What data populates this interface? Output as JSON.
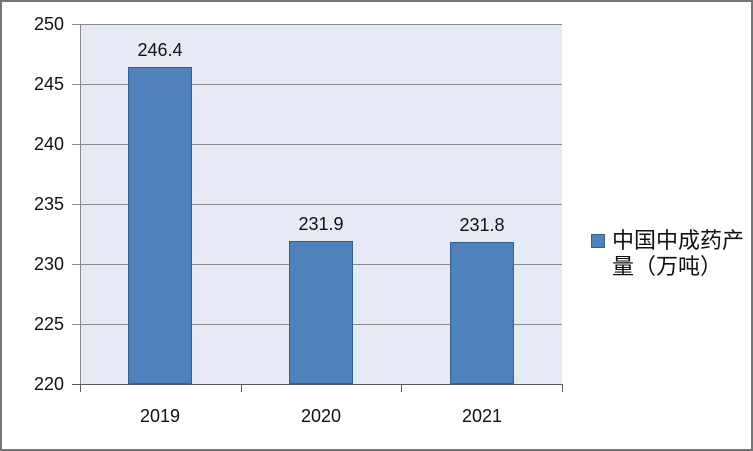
{
  "chart_data": {
    "type": "bar",
    "title": "",
    "categories": [
      "2019",
      "2020",
      "2021"
    ],
    "series": [
      {
        "name": "中国中成药产量（万吨）",
        "values": [
          246.4,
          231.9,
          231.8
        ]
      }
    ],
    "data_labels": [
      "246.4",
      "231.9",
      "231.8"
    ],
    "xlabel": "",
    "ylabel": "",
    "ylim": [
      220,
      250
    ],
    "ytick_step": 5,
    "ytick_labels": [
      "250",
      "245",
      "240",
      "235",
      "230",
      "225",
      "220"
    ],
    "grid": true,
    "legend_position": "right",
    "colors": {
      "bar_fill": "#4F81BD",
      "bar_border": "#38608C",
      "plot_bg": "#E5EAF4",
      "gridline": "#8A8A8A",
      "axis_line": "#5A5A5A",
      "tick_color": "#8A8A8A",
      "text": "#111111",
      "frame_border": "#757575",
      "chart_bg": "#FFFFFF"
    }
  },
  "legend": {
    "label": "中国中成药产量（万吨）"
  }
}
